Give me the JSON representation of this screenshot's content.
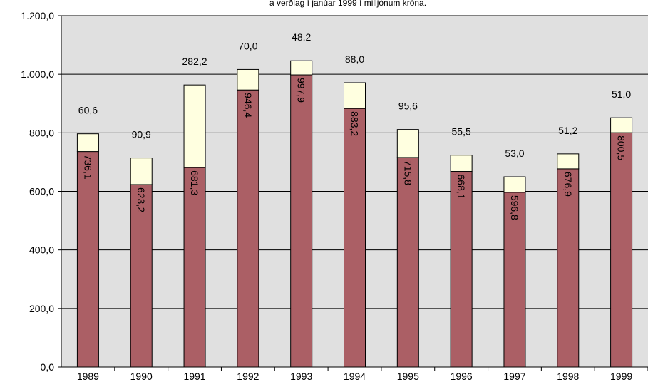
{
  "chart_data": {
    "type": "bar",
    "stacked": true,
    "subtitle": "a verðlag í janúar 1999 í milljónum króna.",
    "categories": [
      "1989",
      "1990",
      "1991",
      "1992",
      "1993",
      "1994",
      "1995",
      "1996",
      "1997",
      "1998",
      "1999"
    ],
    "series": [
      {
        "values": [
          736.1,
          623.2,
          681.3,
          946.4,
          997.9,
          883.2,
          715.8,
          668.1,
          596.8,
          676.9,
          800.5
        ]
      },
      {
        "values": [
          60.6,
          90.9,
          282.2,
          70.0,
          48.2,
          88.0,
          95.6,
          55.5,
          53.0,
          51.2,
          51.0
        ]
      }
    ],
    "bottom_labels": [
      "736,1",
      "623,2",
      "681,3",
      "946,4",
      "997,9",
      "883,2",
      "715,8",
      "668,1",
      "596,8",
      "676,9",
      "800,5"
    ],
    "top_labels": [
      "60,6",
      "90,9",
      "282,2",
      "70,0",
      "48,2",
      "88,0",
      "95,6",
      "55,5",
      "53,0",
      "51,2",
      "51,0"
    ],
    "y_ticks": [
      "0,0",
      "200,0",
      "400,0",
      "600,0",
      "800,0",
      "1.000,0",
      "1.200,0"
    ],
    "ylim": [
      0,
      1200
    ],
    "grid": true,
    "colors": {
      "bottom": "#ab5f65",
      "top": "#ffffe0",
      "plot_bg": "#e0e0e0",
      "edge": "#000000"
    }
  }
}
